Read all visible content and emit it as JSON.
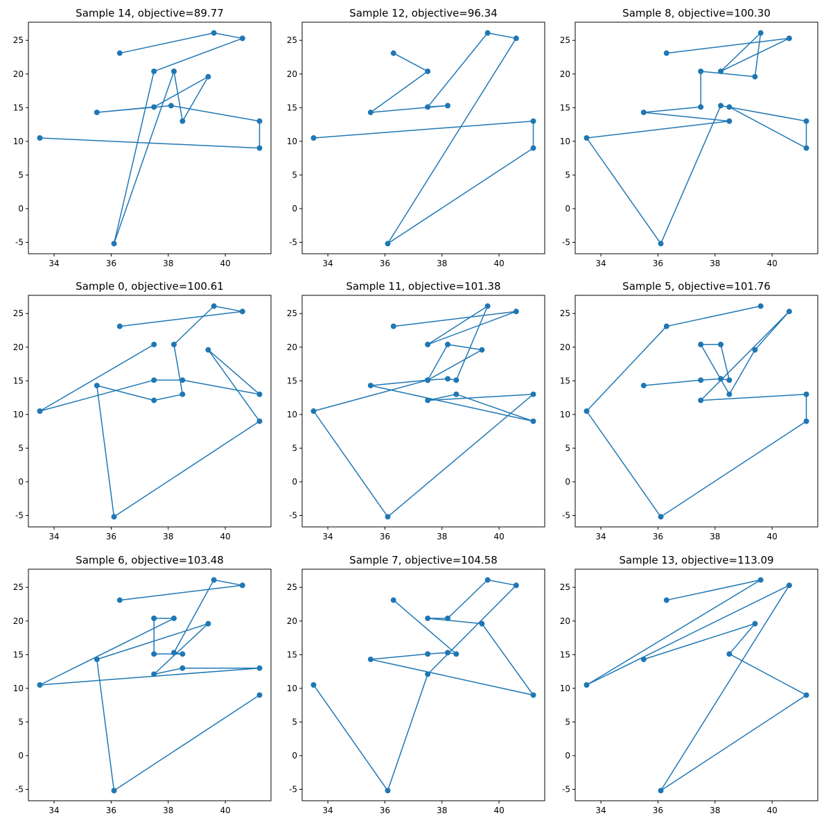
{
  "chart_data": [
    {
      "type": "line",
      "title": "Sample 14, objective=89.77",
      "xlim": [
        33.1,
        41.6
      ],
      "ylim": [
        -6.7,
        27.7
      ],
      "xticks": [
        34,
        36,
        38,
        40
      ],
      "yticks": [
        -5,
        0,
        5,
        10,
        15,
        20,
        25
      ],
      "series": [
        {
          "name": "tour",
          "color": "#1f77b4",
          "x": [
            36.3,
            39.6,
            40.6,
            37.5,
            36.1,
            38.2,
            38.5,
            39.4,
            37.5,
            35.5,
            38.1,
            41.2,
            41.2,
            33.5
          ],
          "y": [
            23.1,
            26.1,
            25.3,
            20.4,
            -5.2,
            20.4,
            13.0,
            19.6,
            15.1,
            14.3,
            15.3,
            13.0,
            9.0,
            10.5
          ]
        }
      ]
    },
    {
      "type": "line",
      "title": "Sample 12, objective=96.34",
      "xlim": [
        33.1,
        41.6
      ],
      "ylim": [
        -6.7,
        27.7
      ],
      "xticks": [
        34,
        36,
        38,
        40
      ],
      "yticks": [
        -5,
        0,
        5,
        10,
        15,
        20,
        25
      ],
      "series": [
        {
          "name": "tour",
          "color": "#1f77b4",
          "x": [
            36.3,
            37.5,
            35.5,
            38.2,
            37.5,
            39.6,
            40.6,
            36.1,
            41.2,
            41.2,
            33.5
          ],
          "y": [
            23.1,
            20.4,
            14.3,
            15.3,
            15.1,
            26.1,
            25.3,
            -5.2,
            9.0,
            13.0,
            10.5
          ]
        }
      ]
    },
    {
      "type": "line",
      "title": "Sample 8, objective=100.30",
      "xlim": [
        33.1,
        41.6
      ],
      "ylim": [
        -6.7,
        27.7
      ],
      "xticks": [
        34,
        36,
        38,
        40
      ],
      "yticks": [
        -5,
        0,
        5,
        10,
        15,
        20,
        25
      ],
      "series": [
        {
          "name": "tour",
          "color": "#1f77b4",
          "x": [
            36.3,
            40.6,
            38.2,
            39.6,
            39.4,
            37.5,
            37.5,
            35.5,
            38.5,
            33.5,
            36.1,
            38.2,
            41.2,
            41.2,
            38.5
          ],
          "y": [
            23.1,
            25.3,
            20.4,
            26.1,
            19.6,
            20.4,
            15.1,
            14.3,
            13.0,
            10.5,
            -5.2,
            15.3,
            13.0,
            9.0,
            15.1
          ]
        }
      ]
    },
    {
      "type": "line",
      "title": "Sample 0, objective=100.61",
      "xlim": [
        33.1,
        41.6
      ],
      "ylim": [
        -6.7,
        27.7
      ],
      "xticks": [
        34,
        36,
        38,
        40
      ],
      "yticks": [
        -5,
        0,
        5,
        10,
        15,
        20,
        25
      ],
      "series": [
        {
          "name": "tour",
          "color": "#1f77b4",
          "x": [
            36.3,
            40.6,
            39.6,
            38.2,
            38.5,
            37.5,
            35.5,
            36.1,
            41.2,
            39.4,
            41.2,
            38.5,
            37.5,
            33.5,
            37.5
          ],
          "y": [
            23.1,
            25.3,
            26.1,
            20.4,
            13.0,
            12.1,
            14.3,
            -5.2,
            9.0,
            19.6,
            13.0,
            15.1,
            15.1,
            10.5,
            20.4
          ]
        }
      ]
    },
    {
      "type": "line",
      "title": "Sample 11, objective=101.38",
      "xlim": [
        33.1,
        41.6
      ],
      "ylim": [
        -6.7,
        27.7
      ],
      "xticks": [
        34,
        36,
        38,
        40
      ],
      "yticks": [
        -5,
        0,
        5,
        10,
        15,
        20,
        25
      ],
      "series": [
        {
          "name": "tour",
          "color": "#1f77b4",
          "x": [
            36.3,
            40.6,
            37.5,
            39.6,
            38.5,
            38.2,
            37.5,
            39.4,
            38.2,
            37.5,
            35.5,
            41.2,
            38.5,
            37.5,
            41.2,
            36.1,
            33.5,
            37.5
          ],
          "y": [
            23.1,
            25.3,
            20.4,
            26.1,
            15.1,
            15.3,
            15.1,
            19.6,
            20.4,
            15.1,
            14.3,
            9.0,
            13.0,
            12.1,
            13.0,
            -5.2,
            10.5,
            15.1
          ]
        }
      ]
    },
    {
      "type": "line",
      "title": "Sample 5, objective=101.76",
      "xlim": [
        33.1,
        41.6
      ],
      "ylim": [
        -6.7,
        27.7
      ],
      "xticks": [
        34,
        36,
        38,
        40
      ],
      "yticks": [
        -5,
        0,
        5,
        10,
        15,
        20,
        25
      ],
      "series": [
        {
          "name": "tour",
          "color": "#1f77b4",
          "x": [
            39.6,
            36.3,
            33.5,
            36.1,
            41.2,
            41.2,
            37.5,
            40.6,
            39.4,
            38.5,
            37.5,
            38.2,
            38.5,
            38.2,
            37.5,
            35.5
          ],
          "y": [
            26.1,
            23.1,
            10.5,
            -5.2,
            9.0,
            13.0,
            12.1,
            25.3,
            19.6,
            13.0,
            20.4,
            20.4,
            15.1,
            15.3,
            15.1,
            14.3
          ]
        }
      ]
    },
    {
      "type": "line",
      "title": "Sample 6, objective=103.48",
      "xlim": [
        33.1,
        41.6
      ],
      "ylim": [
        -6.7,
        27.7
      ],
      "xticks": [
        34,
        36,
        38,
        40
      ],
      "yticks": [
        -5,
        0,
        5,
        10,
        15,
        20,
        25
      ],
      "series": [
        {
          "name": "tour",
          "color": "#1f77b4",
          "x": [
            36.3,
            40.6,
            39.6,
            38.2,
            38.5,
            37.5,
            37.5,
            38.2,
            33.5,
            41.2,
            38.5,
            37.5,
            39.4,
            35.5,
            36.1,
            41.2
          ],
          "y": [
            23.1,
            25.3,
            26.1,
            15.3,
            15.1,
            15.1,
            20.4,
            20.4,
            10.5,
            13.0,
            13.0,
            12.1,
            19.6,
            14.3,
            -5.2,
            9.0
          ]
        }
      ]
    },
    {
      "type": "line",
      "title": "Sample 7, objective=104.58",
      "xlim": [
        33.1,
        41.6
      ],
      "ylim": [
        -6.7,
        27.7
      ],
      "xticks": [
        34,
        36,
        38,
        40
      ],
      "yticks": [
        -5,
        0,
        5,
        10,
        15,
        20,
        25
      ],
      "series": [
        {
          "name": "tour",
          "color": "#1f77b4",
          "x": [
            36.3,
            38.5,
            38.2,
            37.5,
            35.5,
            41.2,
            39.4,
            37.5,
            38.2,
            39.6,
            40.6,
            37.5,
            36.1,
            33.5
          ],
          "y": [
            23.1,
            15.1,
            15.3,
            15.1,
            14.3,
            9.0,
            19.6,
            20.4,
            20.4,
            26.1,
            25.3,
            12.1,
            -5.2,
            10.5
          ]
        }
      ]
    },
    {
      "type": "line",
      "title": "Sample 13, objective=113.09",
      "xlim": [
        33.1,
        41.6
      ],
      "ylim": [
        -6.7,
        27.7
      ],
      "xticks": [
        34,
        36,
        38,
        40
      ],
      "yticks": [
        -5,
        0,
        5,
        10,
        15,
        20,
        25
      ],
      "series": [
        {
          "name": "tour",
          "color": "#1f77b4",
          "x": [
            36.3,
            39.6,
            33.5,
            40.6,
            36.1,
            41.2,
            38.5,
            39.4,
            35.5
          ],
          "y": [
            23.1,
            26.1,
            10.5,
            25.3,
            -5.2,
            9.0,
            15.1,
            19.6,
            14.3
          ]
        }
      ]
    }
  ]
}
